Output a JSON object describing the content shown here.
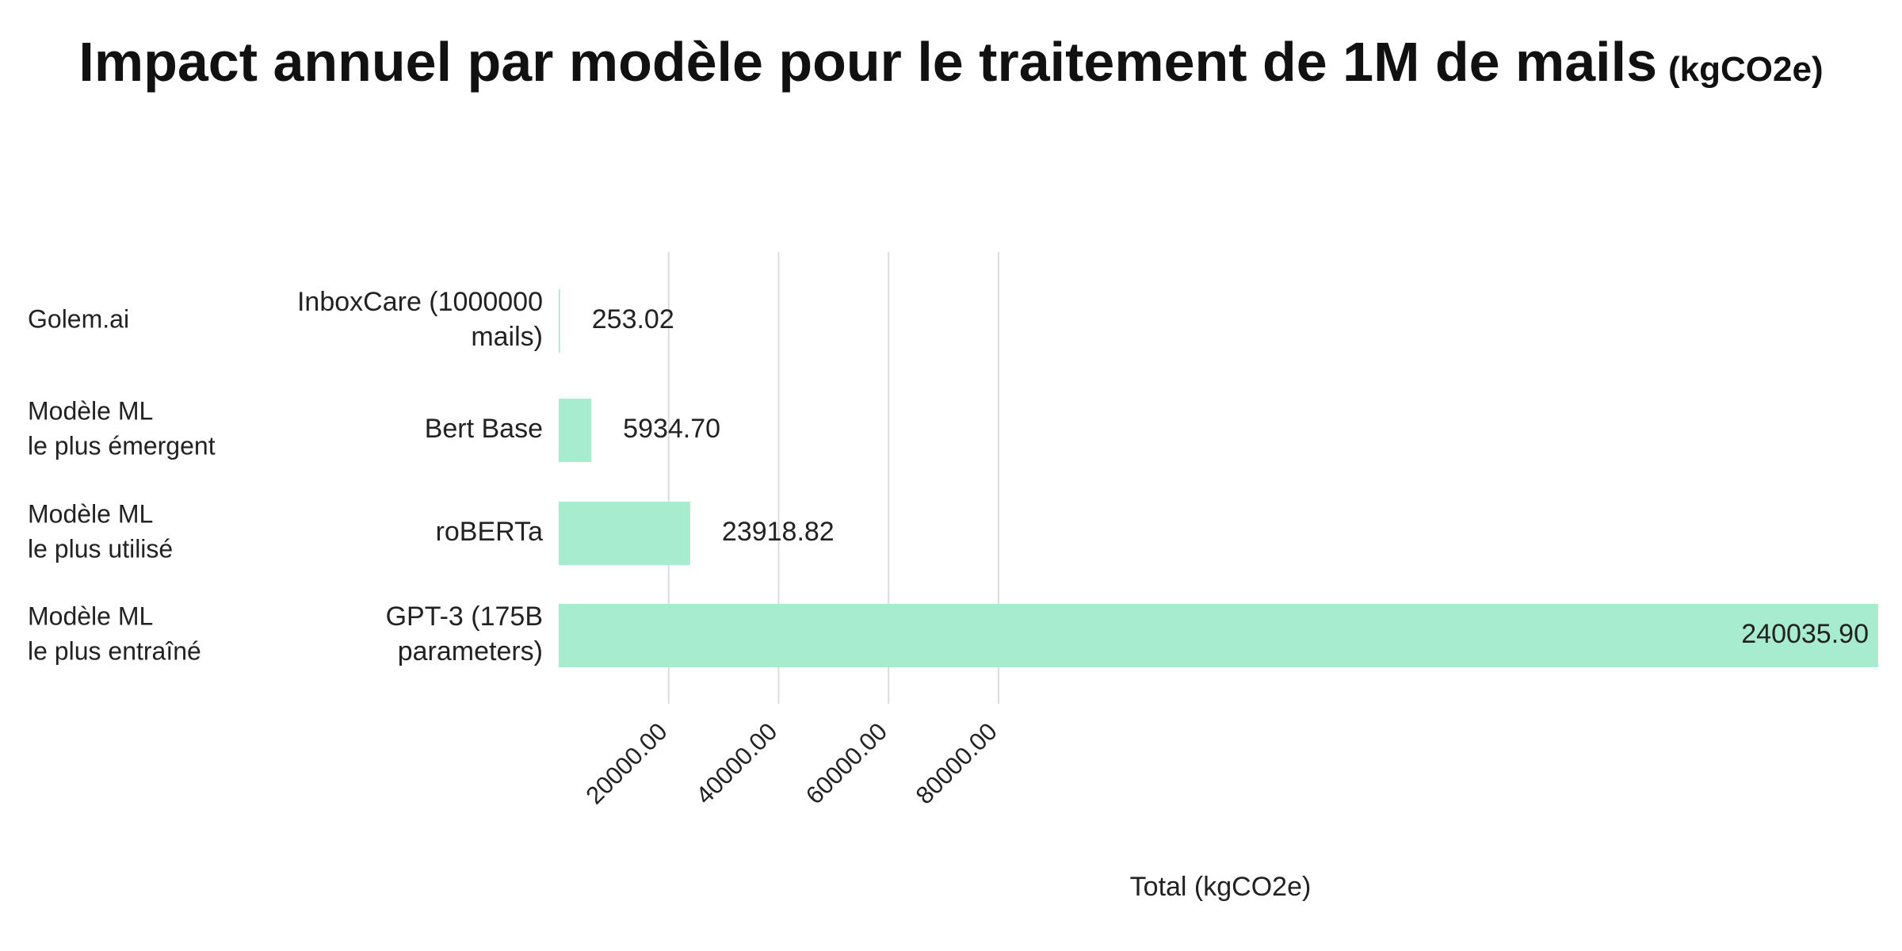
{
  "title": "Impact annuel par modèle pour le traitement de 1M de mails",
  "title_unit": "(kgCO2e)",
  "chart_data": {
    "type": "bar",
    "orientation": "horizontal",
    "title": "Impact annuel par modèle pour le traitement de 1M de mails (kgCO2e)",
    "xlabel": "Total (kgCO2e)",
    "ylabel": "",
    "xlim": [
      0,
      240035.9
    ],
    "xticks": [
      20000,
      40000,
      60000,
      80000
    ],
    "xtick_labels": [
      "20000.00",
      "40000.00",
      "60000.00",
      "80000.00"
    ],
    "grid": true,
    "bar_color": "#a8ecd0",
    "rows": [
      {
        "group": [
          "Golem.ai"
        ],
        "category": [
          "InboxCare (1000000",
          "mails)"
        ],
        "value": 253.02,
        "value_label": "253.02"
      },
      {
        "group": [
          "Modèle ML",
          "le plus émergent"
        ],
        "category": [
          "Bert Base"
        ],
        "value": 5934.7,
        "value_label": "5934.70"
      },
      {
        "group": [
          "Modèle ML",
          "le plus utilisé"
        ],
        "category": [
          "roBERTa"
        ],
        "value": 23918.82,
        "value_label": "23918.82"
      },
      {
        "group": [
          "Modèle ML",
          "le plus entraîné"
        ],
        "category": [
          "GPT-3 (175B",
          "parameters)"
        ],
        "value": 240035.9,
        "value_label": "240035.90"
      }
    ]
  }
}
